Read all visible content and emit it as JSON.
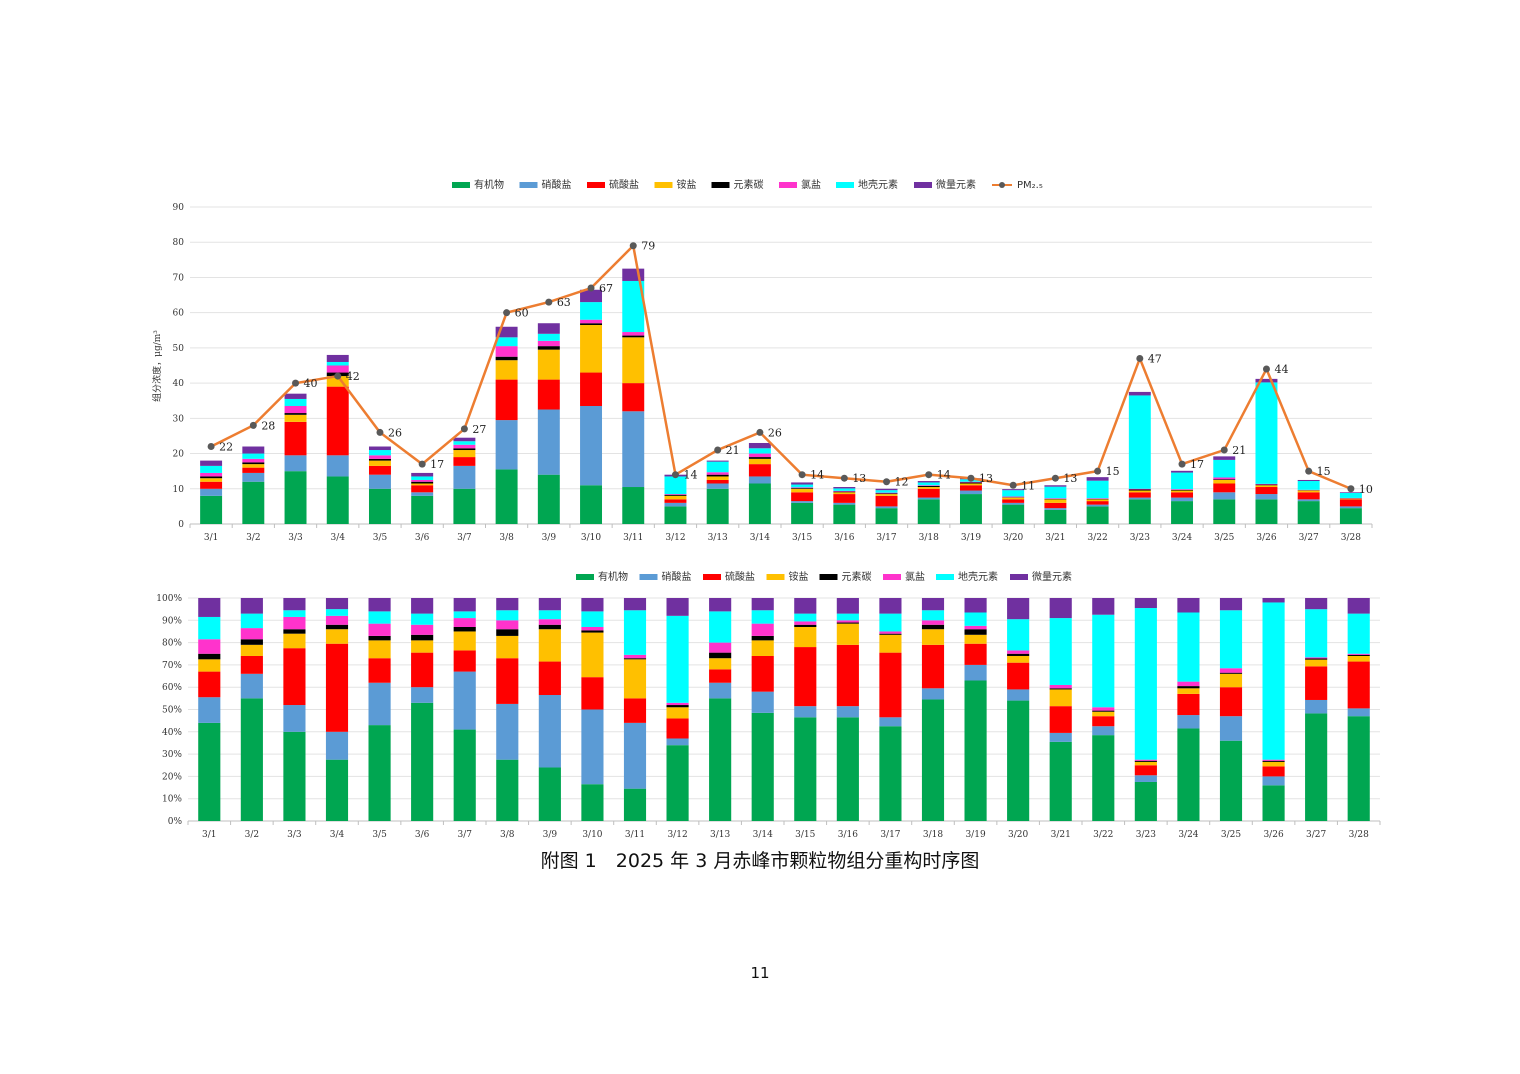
{
  "caption": "附图 1　2025 年 3 月赤峰市颗粒物组分重构时序图",
  "page_number": "11",
  "chart_data": [
    {
      "type": "bar",
      "stacked": true,
      "ylabel": "组分浓度，μg/m³",
      "ylim": [
        0,
        90
      ],
      "yticks": [
        0,
        10,
        20,
        30,
        40,
        50,
        60,
        70,
        80,
        90
      ],
      "grid": true,
      "legend_position": "top",
      "categories": [
        "3/1",
        "3/2",
        "3/3",
        "3/4",
        "3/5",
        "3/6",
        "3/7",
        "3/8",
        "3/9",
        "3/10",
        "3/11",
        "3/12",
        "3/13",
        "3/14",
        "3/15",
        "3/16",
        "3/17",
        "3/18",
        "3/19",
        "3/20",
        "3/21",
        "3/22",
        "3/23",
        "3/24",
        "3/25",
        "3/26",
        "3/27",
        "3/28"
      ],
      "series": [
        {
          "name": "有机物",
          "color": "#00A651",
          "values": [
            8,
            12,
            15,
            13.5,
            10,
            8,
            10,
            15.5,
            14,
            11,
            10.5,
            5,
            10,
            11.5,
            6,
            5.5,
            4.5,
            7,
            8.5,
            5.5,
            4,
            5,
            7,
            6.5,
            7,
            7,
            6.5,
            4.5
          ]
        },
        {
          "name": "硝酸盐",
          "color": "#5B9BD5",
          "values": [
            2,
            2.5,
            4.5,
            6,
            4,
            1,
            6.5,
            14,
            18.5,
            22.5,
            21.5,
            1,
            1.5,
            2,
            0.5,
            0.5,
            0.5,
            0.5,
            1,
            0.5,
            0.5,
            0.5,
            0.5,
            1,
            2,
            1.5,
            0.5,
            0.5
          ]
        },
        {
          "name": "硫酸盐",
          "color": "#FF0000",
          "values": [
            2,
            1.5,
            9.5,
            19.5,
            2.5,
            2,
            2.5,
            11.5,
            8.5,
            9.5,
            8,
            1,
            1,
            3.5,
            2.5,
            2.5,
            3,
            2.5,
            1.5,
            1,
            1.5,
            1,
            1.5,
            1.5,
            2.5,
            2,
            2,
            2
          ]
        },
        {
          "name": "铵盐",
          "color": "#FFC000",
          "values": [
            1,
            1,
            2,
            3,
            1.5,
            0.5,
            2,
            5.5,
            8.5,
            13.5,
            13,
            1,
            1,
            1.5,
            1,
            0.5,
            0.5,
            0.5,
            0.5,
            0.5,
            1,
            0.5,
            0.5,
            0.5,
            1,
            0.5,
            0.5,
            0.2
          ]
        },
        {
          "name": "元素碳",
          "color": "#000000",
          "values": [
            0.5,
            0.5,
            0.5,
            1,
            0.5,
            0.5,
            0.5,
            1,
            1,
            0.5,
            0.5,
            0.3,
            0.5,
            0.5,
            0.2,
            0.2,
            0.2,
            0.3,
            0.3,
            0.1,
            0.1,
            0.1,
            0.3,
            0.2,
            0.2,
            0.2,
            0.1,
            0.1
          ]
        },
        {
          "name": "氯盐",
          "color": "#FF33CC",
          "values": [
            1,
            1,
            2,
            2,
            1,
            0.5,
            1,
            3,
            1.5,
            1,
            1,
            0.2,
            0.7,
            1,
            0.2,
            0.2,
            0.2,
            0.2,
            0.2,
            0.2,
            0.2,
            0.2,
            0.2,
            0.2,
            0.5,
            0.2,
            0.1,
            0.1
          ]
        },
        {
          "name": "地壳元素",
          "color": "#00FFFF",
          "values": [
            2,
            1.5,
            2,
            1,
            1.5,
            1,
            1,
            2.5,
            2,
            5,
            14.5,
            5,
            3,
            1.5,
            0.8,
            0.7,
            0.7,
            0.8,
            0.7,
            1.8,
            3.3,
            5,
            26.5,
            4.7,
            5,
            28.8,
            2.5,
            1.4
          ]
        },
        {
          "name": "微量元素",
          "color": "#7030A0",
          "values": [
            1.5,
            2,
            1.5,
            2,
            1,
            1,
            1,
            3,
            3,
            3.5,
            3.5,
            0.5,
            0.3,
            1.5,
            0.6,
            0.4,
            0.4,
            0.4,
            0.3,
            0.3,
            0.4,
            1,
            1,
            0.5,
            1,
            1,
            0.3,
            0.2
          ]
        }
      ],
      "line": {
        "name": "PM₂.₅",
        "color": "#ED7D31",
        "marker_color": "#595959",
        "values": [
          22,
          28,
          40,
          42,
          26,
          17,
          27,
          60,
          63,
          67,
          79,
          14,
          21,
          26,
          14,
          13,
          12,
          14,
          13,
          11,
          13,
          15,
          47,
          17,
          21,
          44,
          15,
          10
        ]
      }
    },
    {
      "type": "bar",
      "stacked": true,
      "percent": true,
      "ylim": [
        0,
        100
      ],
      "yticks": [
        "0%",
        "10%",
        "20%",
        "30%",
        "40%",
        "50%",
        "60%",
        "70%",
        "80%",
        "90%",
        "100%"
      ],
      "grid": true,
      "legend_position": "top",
      "categories": [
        "3/1",
        "3/2",
        "3/3",
        "3/4",
        "3/5",
        "3/6",
        "3/7",
        "3/8",
        "3/9",
        "3/10",
        "3/11",
        "3/12",
        "3/13",
        "3/14",
        "3/15",
        "3/16",
        "3/17",
        "3/18",
        "3/19",
        "3/20",
        "3/21",
        "3/22",
        "3/23",
        "3/24",
        "3/25",
        "3/26",
        "3/27",
        "3/28"
      ],
      "series": [
        {
          "name": "有机物",
          "color": "#00A651",
          "values": [
            44,
            55,
            40,
            27.5,
            43,
            53,
            41,
            27.5,
            24,
            16.5,
            14.5,
            34,
            55,
            48.5,
            46.5,
            46.5,
            42.5,
            54.5,
            63,
            54,
            35.5,
            38.5,
            17.5,
            41.5,
            36,
            16,
            48,
            47
          ]
        },
        {
          "name": "硝酸盐",
          "color": "#5B9BD5",
          "values": [
            11.5,
            11,
            12,
            12.5,
            19,
            7,
            26,
            25,
            32.5,
            33.5,
            29.5,
            3,
            7,
            9.5,
            5,
            5,
            4,
            5,
            7,
            5,
            4,
            4,
            3,
            6,
            11,
            4,
            6,
            3.5
          ]
        },
        {
          "name": "硫酸盐",
          "color": "#FF0000",
          "values": [
            11.5,
            8,
            25.5,
            39.5,
            11,
            15.5,
            9.5,
            20.5,
            15,
            14.5,
            11,
            9,
            6,
            16,
            26.5,
            27.5,
            29,
            19.5,
            9.5,
            12,
            12,
            4.5,
            4.5,
            9.5,
            13,
            4.5,
            15,
            21
          ]
        },
        {
          "name": "铵盐",
          "color": "#FFC000",
          "values": [
            5.5,
            5,
            6.5,
            6.5,
            8,
            5.5,
            8.5,
            10,
            14.5,
            20,
            17.5,
            5,
            5,
            7,
            9,
            9.5,
            8,
            7,
            4,
            3,
            7.5,
            2,
            1.5,
            2.5,
            6,
            2,
            3,
            2.5
          ]
        },
        {
          "name": "元素碳",
          "color": "#000000",
          "values": [
            2.5,
            2.5,
            2,
            2,
            2,
            2.5,
            2,
            3,
            2,
            1,
            0.5,
            1,
            2.5,
            2,
            1,
            0.5,
            0.5,
            2,
            2.5,
            1,
            0.5,
            0.5,
            0.5,
            1,
            0.5,
            0.5,
            0.5,
            0.5
          ]
        },
        {
          "name": "氯盐",
          "color": "#FF33CC",
          "values": [
            6.5,
            5,
            5.5,
            4,
            5.5,
            4.5,
            4,
            4,
            2.5,
            1.5,
            1.5,
            1,
            4.5,
            5.5,
            1.5,
            1,
            1,
            2,
            1.5,
            1.5,
            1.5,
            1.5,
            0.5,
            2,
            2,
            0.5,
            0.5,
            0.5
          ]
        },
        {
          "name": "地壳元素",
          "color": "#00FFFF",
          "values": [
            10,
            6.5,
            3,
            3,
            5.5,
            5,
            3,
            4.5,
            4,
            7,
            20,
            39,
            14,
            6,
            3.5,
            3,
            8,
            4.5,
            6,
            14,
            30,
            41.5,
            68,
            31,
            26,
            70.5,
            21.5,
            18
          ]
        },
        {
          "name": "微量元素",
          "color": "#7030A0",
          "values": [
            8.5,
            7,
            5.5,
            5,
            6,
            7,
            6,
            5.5,
            5.5,
            6,
            5.5,
            8,
            6,
            5.5,
            7,
            7,
            7,
            5.5,
            6.5,
            9.5,
            9,
            7.5,
            4.5,
            6.5,
            5.5,
            2,
            5,
            7
          ]
        }
      ]
    }
  ]
}
